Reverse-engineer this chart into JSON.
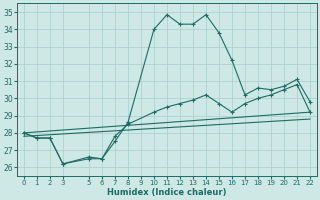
{
  "xlabel": "Humidex (Indice chaleur)",
  "xlim": [
    -0.5,
    22.5
  ],
  "ylim": [
    25.5,
    35.5
  ],
  "xticks": [
    0,
    1,
    2,
    3,
    5,
    6,
    7,
    8,
    9,
    10,
    11,
    12,
    13,
    14,
    15,
    16,
    17,
    18,
    19,
    20,
    21,
    22
  ],
  "yticks": [
    26,
    27,
    28,
    29,
    30,
    31,
    32,
    33,
    34,
    35
  ],
  "bg_color": "#cde8e5",
  "grid_color": "#aacfcc",
  "line_color": "#1e6b65",
  "line0": {
    "x": [
      0,
      1,
      2,
      3,
      5,
      6,
      7,
      8,
      10,
      11,
      12,
      13,
      14,
      15,
      16,
      17,
      18,
      19,
      20,
      21,
      22
    ],
    "y": [
      28.0,
      27.7,
      27.7,
      26.2,
      26.6,
      26.5,
      27.5,
      28.6,
      34.0,
      34.85,
      34.3,
      34.3,
      34.85,
      33.8,
      32.2,
      30.2,
      30.6,
      30.5,
      30.7,
      31.1,
      29.8
    ]
  },
  "line1": {
    "x": [
      0,
      1,
      2,
      3,
      5,
      6,
      7,
      8,
      10,
      11,
      12,
      13,
      14,
      15,
      16,
      17,
      18,
      19,
      20,
      21,
      22
    ],
    "y": [
      28.0,
      27.7,
      27.7,
      26.2,
      26.5,
      26.5,
      27.8,
      28.5,
      29.2,
      29.5,
      29.7,
      29.9,
      30.2,
      29.7,
      29.2,
      29.7,
      30.0,
      30.2,
      30.5,
      30.8,
      29.2
    ]
  },
  "line2": {
    "x": [
      0,
      22
    ],
    "y": [
      28.0,
      29.2
    ]
  },
  "line3": {
    "x": [
      0,
      22
    ],
    "y": [
      27.8,
      28.8
    ]
  }
}
